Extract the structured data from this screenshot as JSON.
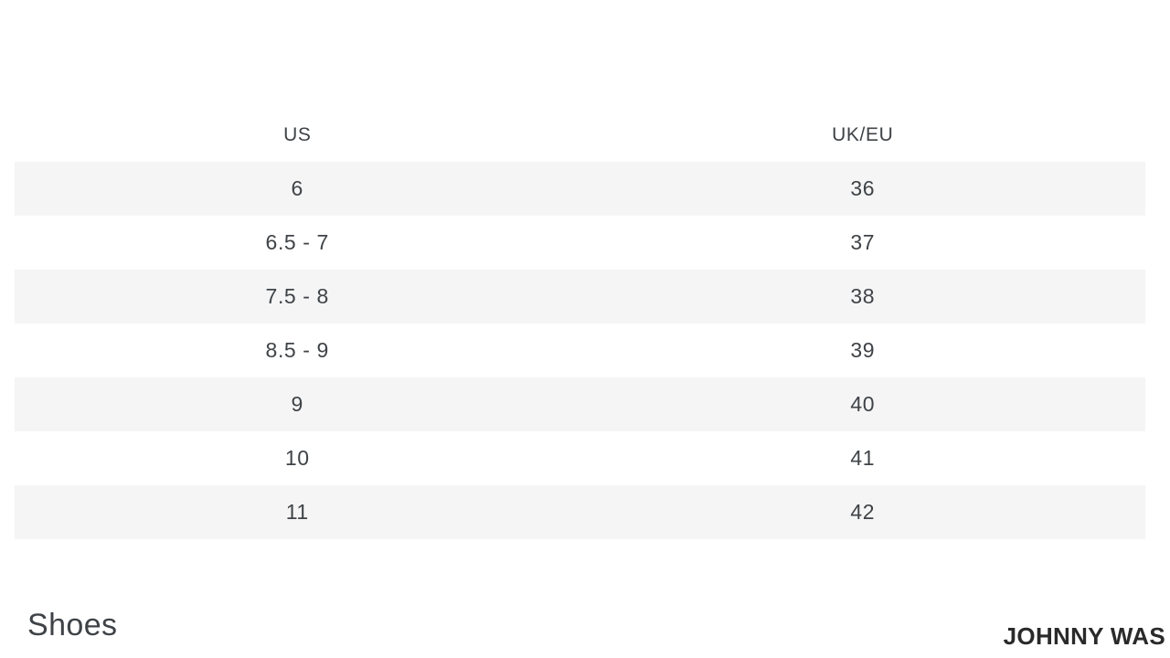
{
  "size_chart": {
    "columns": [
      "US",
      "UK/EU"
    ],
    "rows": [
      {
        "us": "6",
        "uk_eu": "36"
      },
      {
        "us": "6.5 - 7",
        "uk_eu": "37"
      },
      {
        "us": "7.5 - 8",
        "uk_eu": "38"
      },
      {
        "us": "8.5 - 9",
        "uk_eu": "39"
      },
      {
        "us": "9",
        "uk_eu": "40"
      },
      {
        "us": "10",
        "uk_eu": "41"
      },
      {
        "us": "11",
        "uk_eu": "42"
      }
    ]
  },
  "footer": {
    "category_label": "Shoes",
    "brand_name": "JOHNNY WAS"
  },
  "colors": {
    "background": "#ffffff",
    "row_stripe": "#f5f5f5",
    "text": "#3f4347",
    "brand_text": "#2a2a2a"
  }
}
